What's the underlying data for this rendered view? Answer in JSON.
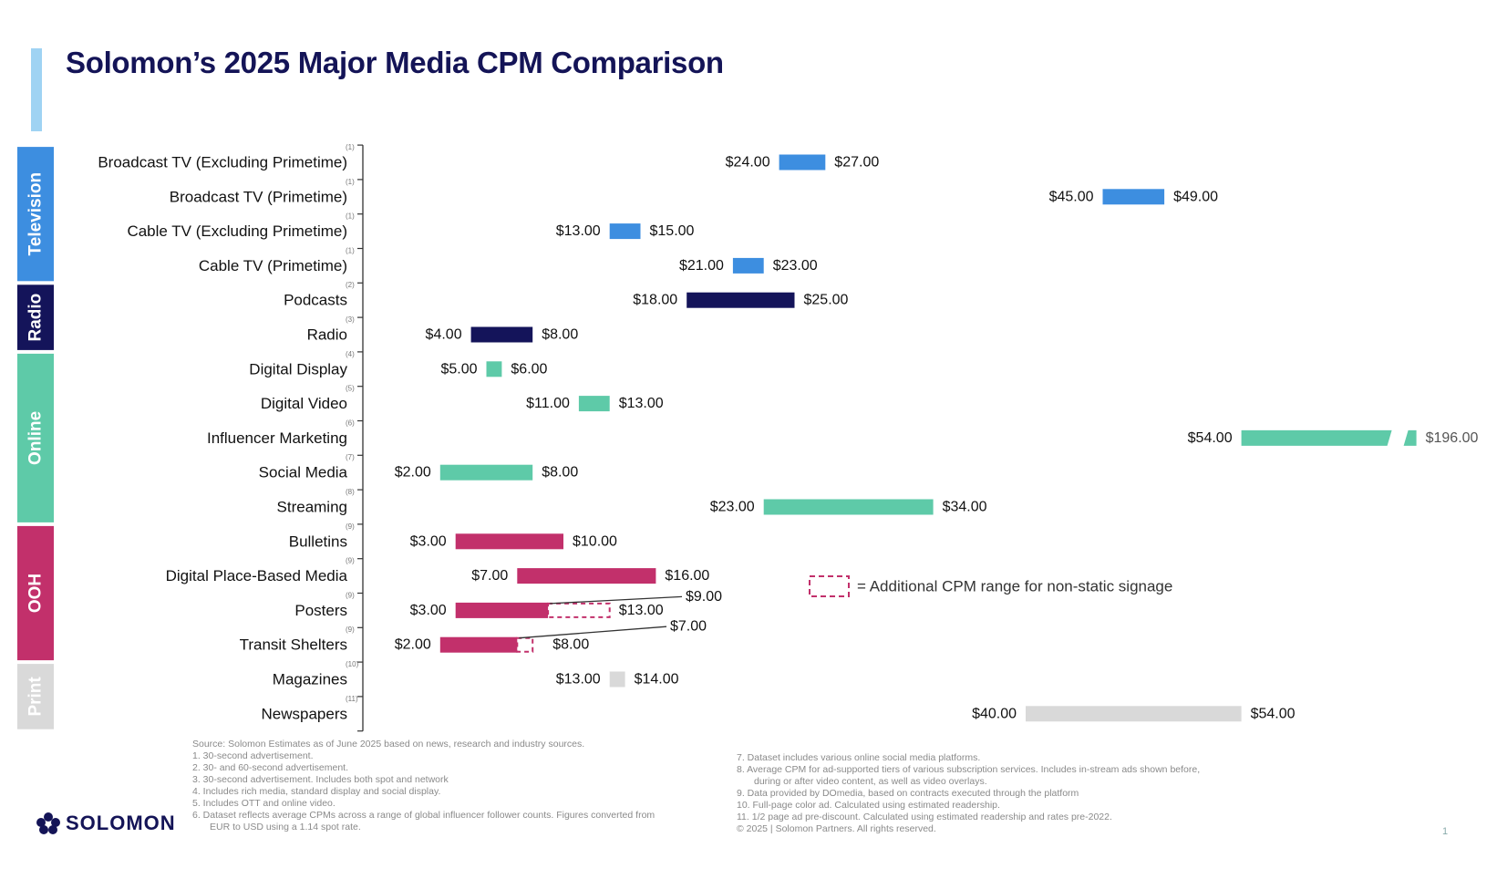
{
  "title": "Solomon’s 2025 Major Media CPM Comparison",
  "chart_data": {
    "type": "bar",
    "subtype": "floating-range-horizontal",
    "title": "Solomon’s 2025 Major Media CPM Comparison",
    "xlabel": "",
    "ylabel": "",
    "unit": "USD CPM",
    "xlim": [
      0,
      80
    ],
    "grid": false,
    "groups": [
      {
        "name": "Television",
        "color": "#3d8ee0",
        "rows": [
          0,
          1,
          2,
          3
        ]
      },
      {
        "name": "Radio",
        "color": "#14145a",
        "rows": [
          4,
          5
        ]
      },
      {
        "name": "Online",
        "color": "#5ecaa8",
        "rows": [
          6,
          7,
          8,
          9,
          10
        ]
      },
      {
        "name": "OOH",
        "color": "#c2306b",
        "rows": [
          11,
          12,
          13,
          14
        ]
      },
      {
        "name": "Print",
        "color": "#d9d9d9",
        "rows": [
          15,
          16
        ]
      }
    ],
    "rows": [
      {
        "label": "Broadcast TV (Excluding Primetime)",
        "note": "(1)",
        "low": 24,
        "high": 27,
        "low_label": "$24.00",
        "high_label": "$27.00"
      },
      {
        "label": "Broadcast TV (Primetime)",
        "note": "(1)",
        "low": 45,
        "high": 49,
        "low_label": "$45.00",
        "high_label": "$49.00"
      },
      {
        "label": "Cable TV (Excluding Primetime)",
        "note": "(1)",
        "low": 13,
        "high": 15,
        "low_label": "$13.00",
        "high_label": "$15.00"
      },
      {
        "label": "Cable TV (Primetime)",
        "note": "(1)",
        "low": 21,
        "high": 23,
        "low_label": "$21.00",
        "high_label": "$23.00"
      },
      {
        "label": "Podcasts",
        "note": "(2)",
        "low": 18,
        "high": 25,
        "low_label": "$18.00",
        "high_label": "$25.00"
      },
      {
        "label": "Radio",
        "note": "(3)",
        "low": 4,
        "high": 8,
        "low_label": "$4.00",
        "high_label": "$8.00"
      },
      {
        "label": "Digital Display",
        "note": "(4)",
        "low": 5,
        "high": 6,
        "low_label": "$5.00",
        "high_label": "$6.00"
      },
      {
        "label": "Digital Video",
        "note": "(5)",
        "low": 11,
        "high": 13,
        "low_label": "$11.00",
        "high_label": "$13.00"
      },
      {
        "label": "Influencer Marketing",
        "note": "(6)",
        "low": 54,
        "high": 196,
        "low_label": "$54.00",
        "high_label": "$196.00",
        "broken_axis": true
      },
      {
        "label": "Social Media",
        "note": "(7)",
        "low": 2,
        "high": 8,
        "low_label": "$2.00",
        "high_label": "$8.00"
      },
      {
        "label": "Streaming",
        "note": "(8)",
        "low": 23,
        "high": 34,
        "low_label": "$23.00",
        "high_label": "$34.00"
      },
      {
        "label": "Bulletins",
        "note": "(9)",
        "low": 3,
        "high": 10,
        "low_label": "$3.00",
        "high_label": "$10.00"
      },
      {
        "label": "Digital Place-Based Media",
        "note": "(9)",
        "low": 7,
        "high": 16,
        "low_label": "$7.00",
        "high_label": "$16.00"
      },
      {
        "label": "Posters",
        "note": "(9)",
        "low": 3,
        "high": 9,
        "ext_high": 13,
        "low_label": "$3.00",
        "high_label": "$13.00",
        "mid_label": "$9.00"
      },
      {
        "label": "Transit Shelters",
        "note": "(9)",
        "low": 2,
        "high": 7,
        "ext_high": 8,
        "low_label": "$2.00",
        "high_label": "$8.00",
        "mid_label": "$7.00"
      },
      {
        "label": "Magazines",
        "note": "(10)",
        "low": 13,
        "high": 14,
        "low_label": "$13.00",
        "high_label": "$14.00"
      },
      {
        "label": "Newspapers",
        "note": "(11)",
        "low": 40,
        "high": 54,
        "low_label": "$40.00",
        "high_label": "$54.00"
      }
    ],
    "legend": {
      "label": "= Additional CPM range for non-static signage",
      "placement": "right-middle"
    }
  },
  "notes_left": [
    "Source: Solomon Estimates as of June 2025 based on news, research and industry sources.",
    "1.   30-second advertisement.",
    "2.   30- and 60-second advertisement.",
    "3.   30-second advertisement. Includes both spot and network",
    "4.   Includes rich media, standard display and social display.",
    "5.   Includes OTT and online video.",
    "6.   Dataset reflects average CPMs across a range of global influencer follower counts. Figures converted from",
    "EUR to USD using a 1.14 spot rate."
  ],
  "notes_right": [
    "7.   Dataset includes various online social media platforms.",
    "8.   Average CPM for ad-supported tiers of various subscription services. Includes in-stream ads shown before,",
    "during or after video content, as well as video overlays.",
    "9.   Data provided by DOmedia, based on contracts executed through the platform",
    "10. Full-page color ad. Calculated using estimated readership.",
    "11. 1/2 page ad pre-discount. Calculated using estimated readership and rates pre-2022.",
    "© 2025 | Solomon Partners. All rights reserved."
  ],
  "logo": "SOLOMON",
  "page_number": "1"
}
